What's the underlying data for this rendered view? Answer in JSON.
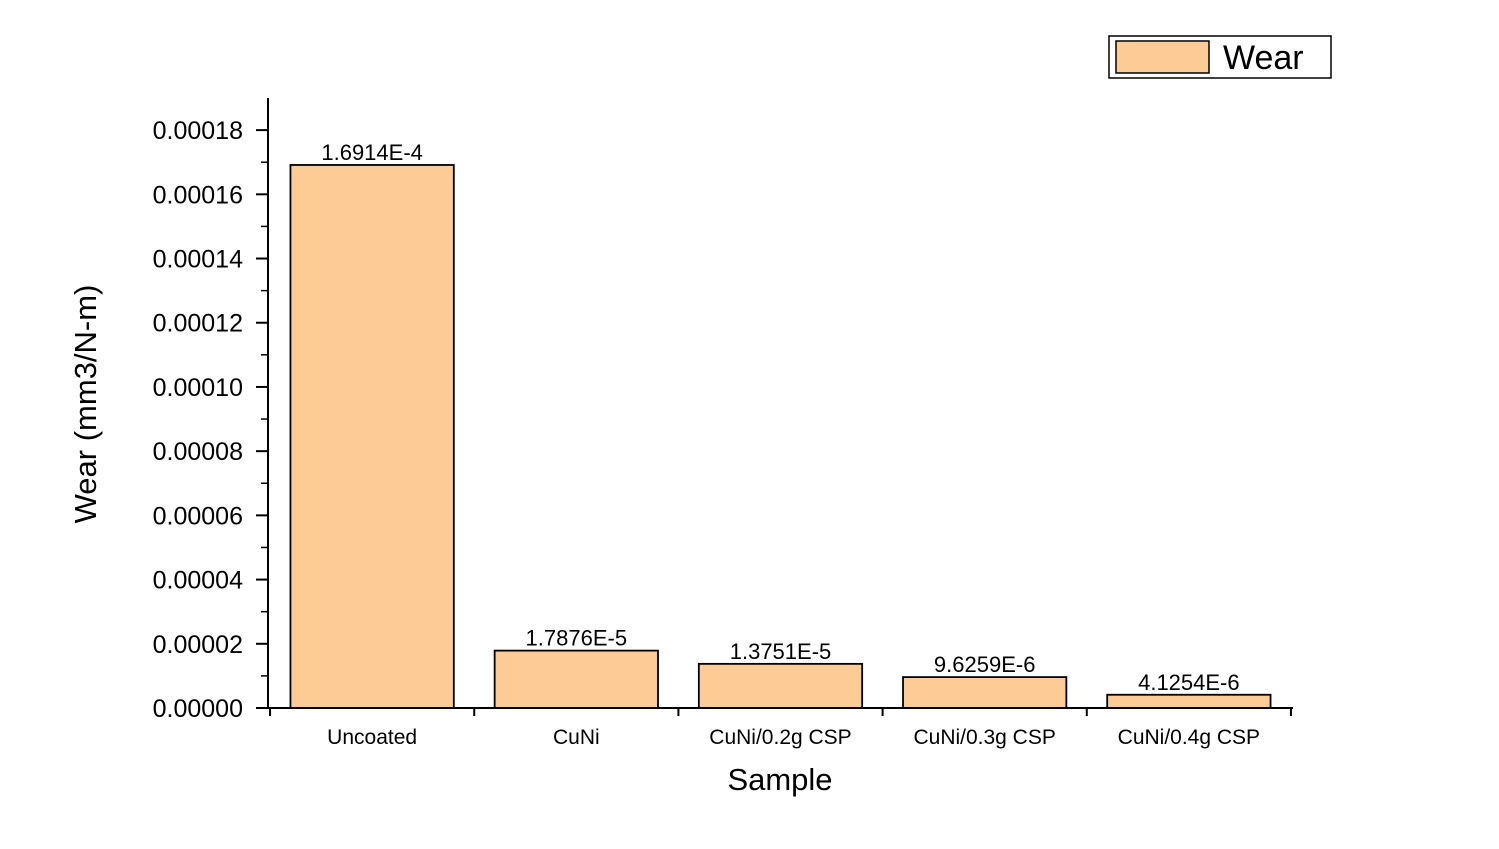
{
  "chart_data": {
    "type": "bar",
    "xlabel": "Sample",
    "ylabel": "Wear (mm3/N-m)",
    "categories": [
      "Uncoated",
      "CuNi",
      "CuNi/0.2g CSP",
      "CuNi/0.3g CSP",
      "CuNi/0.4g CSP"
    ],
    "series": [
      {
        "name": "Wear",
        "color": "#FDCC96",
        "values": [
          0.00016914,
          1.7876e-05,
          1.3751e-05,
          9.6259e-06,
          4.1254e-06
        ],
        "data_labels": [
          "1.6914E-4",
          "1.7876E-5",
          "1.3751E-5",
          "9.6259E-6",
          "4.1254E-6"
        ]
      }
    ],
    "ylim": [
      0,
      0.00019
    ],
    "yticks": [
      0.0,
      2e-05,
      4e-05,
      6e-05,
      8e-05,
      0.0001,
      0.00012,
      0.00014,
      0.00016,
      0.00018
    ],
    "ytick_labels": [
      "0.00000",
      "0.00002",
      "0.00004",
      "0.00006",
      "0.00008",
      "0.00010",
      "0.00012",
      "0.00014",
      "0.00016",
      "0.00018"
    ],
    "grid": false,
    "legend": {
      "position": "top-right",
      "entries": [
        "Wear"
      ]
    }
  }
}
